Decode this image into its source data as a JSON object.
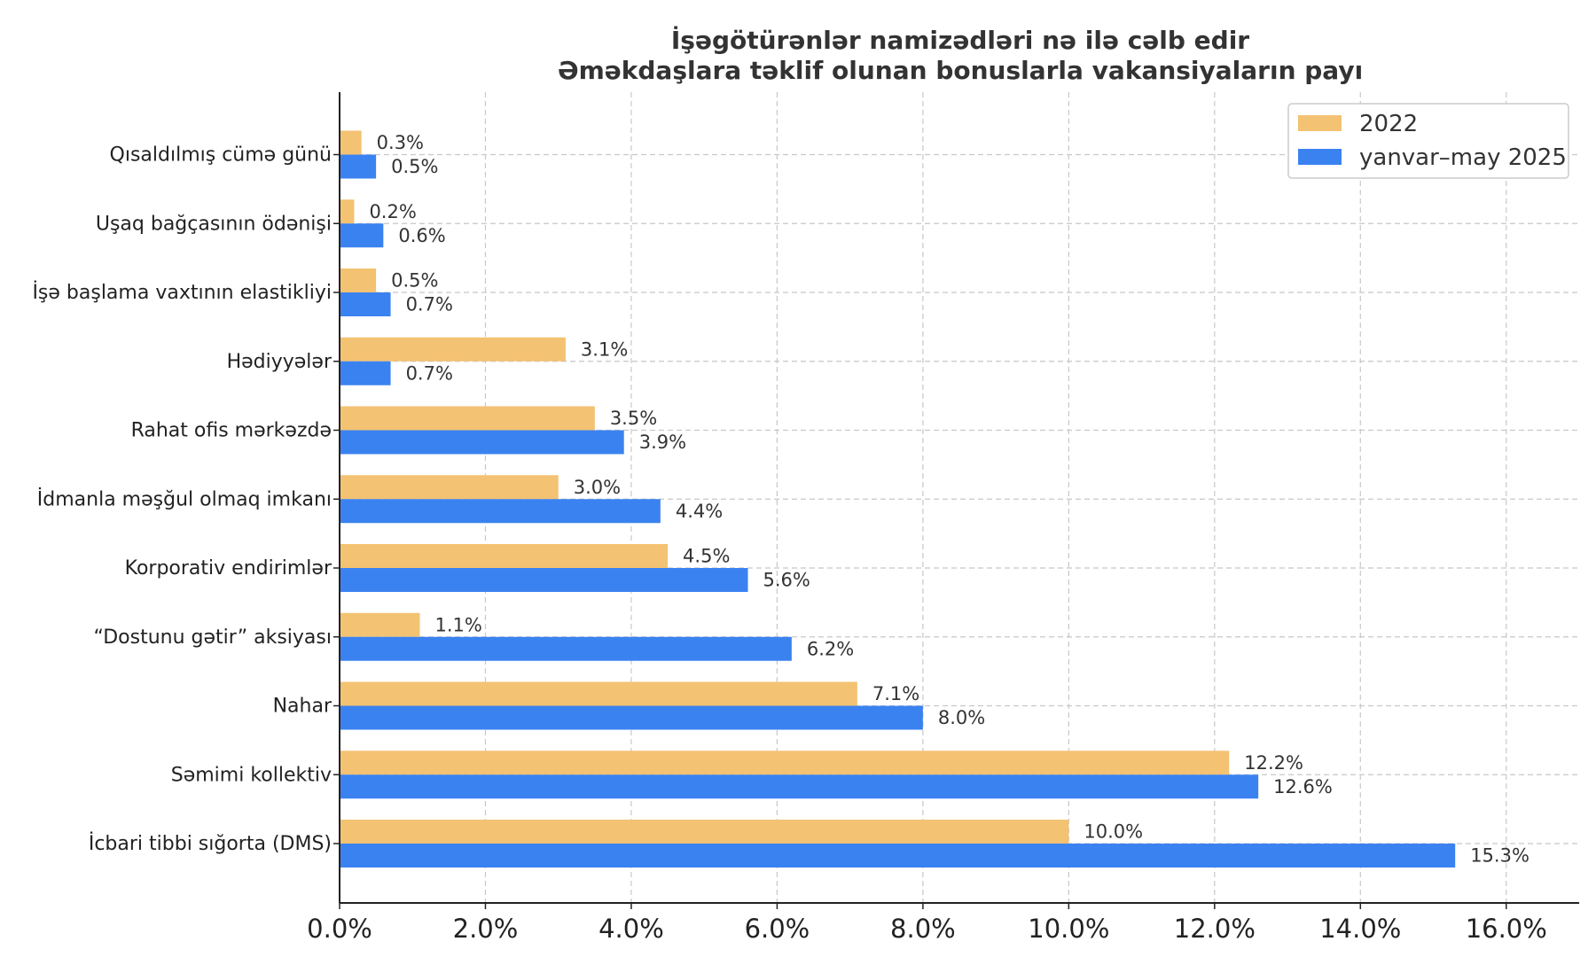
{
  "chart_data": {
    "type": "bar",
    "orientation": "horizontal",
    "title": "İşəgötürənlər namizədləri nə ilə cəlb edir",
    "subtitle": "Əməkdaşlara təklif olunan bonuslarla vakansiyaların payı",
    "xlabel": "",
    "ylabel": "",
    "xlim": [
      0,
      17
    ],
    "x_ticks": [
      0,
      2,
      4,
      6,
      8,
      10,
      12,
      14,
      16
    ],
    "x_tick_labels": [
      "0.0%",
      "2.0%",
      "4.0%",
      "6.0%",
      "8.0%",
      "10.0%",
      "12.0%",
      "14.0%",
      "16.0%"
    ],
    "grid": true,
    "legend_position": "top-right",
    "categories": [
      "Qısaldılmış cümə günü",
      "Uşaq bağçasının ödənişi",
      "İşə başlama vaxtının elastikliyi",
      "Hədiyyələr",
      "Rahat ofis mərkəzdə",
      "İdmanla məşğul olmaq imkanı",
      "Korporativ endirimlər",
      "“Dostunu gətir” aksiyası",
      "Nahar",
      "Səmimi kollektiv",
      "İcbari tibbi sığorta (DMS)"
    ],
    "series": [
      {
        "name": "2022",
        "color": "#F3C272",
        "values": [
          0.3,
          0.2,
          0.5,
          3.1,
          3.5,
          3.0,
          4.5,
          1.1,
          7.1,
          12.2,
          10.0
        ],
        "labels": [
          "0.3%",
          "0.2%",
          "0.5%",
          "3.1%",
          "3.5%",
          "3.0%",
          "4.5%",
          "1.1%",
          "7.1%",
          "12.2%",
          "10.0%"
        ]
      },
      {
        "name": "yanvar–may 2025",
        "color": "#3B82F1",
        "values": [
          0.5,
          0.6,
          0.7,
          0.7,
          3.9,
          4.4,
          5.6,
          6.2,
          8.0,
          12.6,
          15.3
        ],
        "labels": [
          "0.5%",
          "0.6%",
          "0.7%",
          "0.7%",
          "3.9%",
          "4.4%",
          "5.6%",
          "6.2%",
          "8.0%",
          "12.6%",
          "15.3%"
        ]
      }
    ]
  }
}
